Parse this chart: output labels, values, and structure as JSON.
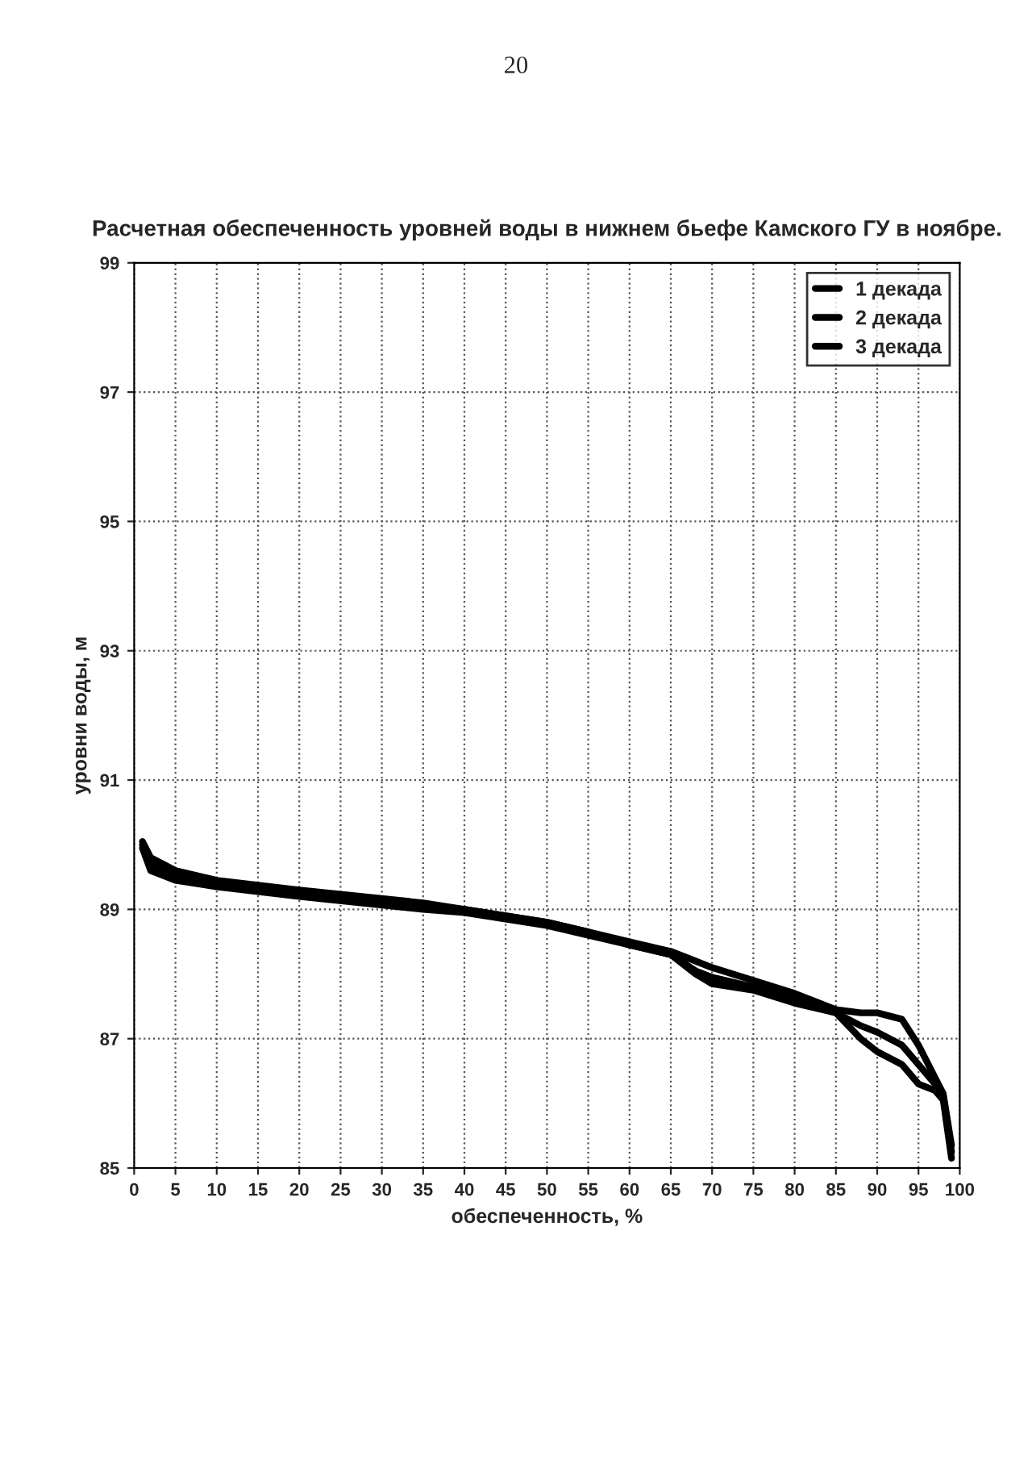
{
  "chart_data": {
    "type": "line",
    "title": "Расчетная обеспеченность уровней воды в нижнем бьефе Камского ГУ в ноябре.",
    "xlabel": "обеспеченность, %",
    "ylabel": "уровни воды, м",
    "xlim": [
      0,
      100
    ],
    "ylim": [
      85,
      99
    ],
    "xticks": [
      0,
      5,
      10,
      15,
      20,
      25,
      30,
      35,
      40,
      45,
      50,
      55,
      60,
      65,
      70,
      75,
      80,
      85,
      90,
      95,
      100
    ],
    "yticks": [
      85,
      87,
      89,
      91,
      93,
      95,
      97,
      99
    ],
    "grid": true,
    "legend": "top right",
    "line_style": "solid",
    "marker": "none",
    "annotations": [
      "20"
    ],
    "series": [
      {
        "name": "1 декада",
        "color": "#000000",
        "x": [
          1,
          2,
          5,
          10,
          20,
          35,
          40,
          50,
          55,
          60,
          65,
          68,
          70,
          75,
          80,
          85,
          88,
          90,
          93,
          95,
          97,
          98,
          99
        ],
        "values": [
          90.05,
          89.8,
          89.6,
          89.45,
          89.3,
          89.1,
          89.0,
          88.8,
          88.65,
          88.5,
          88.35,
          88.2,
          88.1,
          87.9,
          87.7,
          87.45,
          87.4,
          87.4,
          87.3,
          86.9,
          86.4,
          86.15,
          85.35
        ]
      },
      {
        "name": "2 декада",
        "color": "#000000",
        "x": [
          1,
          2,
          5,
          10,
          20,
          35,
          40,
          50,
          55,
          60,
          65,
          68,
          70,
          75,
          80,
          85,
          88,
          90,
          93,
          95,
          97,
          98,
          99
        ],
        "values": [
          90.0,
          89.7,
          89.5,
          89.4,
          89.25,
          89.05,
          89.0,
          88.8,
          88.65,
          88.45,
          88.3,
          88.05,
          87.95,
          87.8,
          87.6,
          87.4,
          87.2,
          87.1,
          86.9,
          86.6,
          86.3,
          86.1,
          85.25
        ]
      },
      {
        "name": "3 декада",
        "color": "#000000",
        "x": [
          1,
          2,
          5,
          10,
          20,
          35,
          40,
          50,
          55,
          60,
          65,
          68,
          70,
          75,
          80,
          85,
          88,
          90,
          93,
          95,
          97,
          98,
          99
        ],
        "values": [
          89.95,
          89.6,
          89.45,
          89.35,
          89.2,
          89.0,
          88.95,
          88.75,
          88.6,
          88.45,
          88.3,
          88.0,
          87.85,
          87.75,
          87.55,
          87.4,
          87.0,
          86.8,
          86.6,
          86.3,
          86.2,
          86.05,
          85.15
        ]
      }
    ]
  }
}
